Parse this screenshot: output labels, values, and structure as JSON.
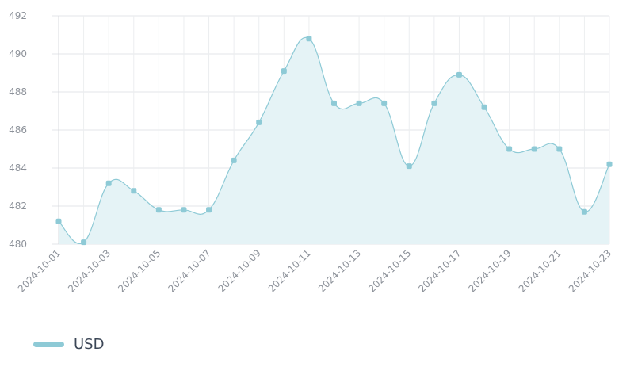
{
  "chart_data": {
    "type": "area",
    "title": "",
    "xlabel": "",
    "ylabel": "",
    "ylim": [
      480,
      492
    ],
    "yticks": [
      480,
      482,
      484,
      486,
      488,
      490,
      492
    ],
    "grid": true,
    "legend_position": "bottom-left",
    "x": [
      "2024-10-01",
      "2024-10-02",
      "2024-10-03",
      "2024-10-04",
      "2024-10-05",
      "2024-10-06",
      "2024-10-07",
      "2024-10-08",
      "2024-10-09",
      "2024-10-10",
      "2024-10-11",
      "2024-10-12",
      "2024-10-13",
      "2024-10-14",
      "2024-10-15",
      "2024-10-16",
      "2024-10-17",
      "2024-10-18",
      "2024-10-19",
      "2024-10-20",
      "2024-10-21",
      "2024-10-22",
      "2024-10-23"
    ],
    "xtick_labels": [
      "2024-10-01",
      "2024-10-03",
      "2024-10-05",
      "2024-10-07",
      "2024-10-09",
      "2024-10-11",
      "2024-10-13",
      "2024-10-15",
      "2024-10-17",
      "2024-10-19",
      "2024-10-21",
      "2024-10-23"
    ],
    "series": [
      {
        "name": "USD",
        "color": "#8ecad6",
        "fill": "#e5f3f6",
        "values": [
          481.2,
          480.1,
          483.2,
          482.8,
          481.8,
          481.8,
          481.8,
          484.4,
          486.4,
          489.1,
          490.8,
          487.4,
          487.4,
          487.4,
          484.1,
          487.4,
          488.9,
          487.2,
          485.0,
          485.0,
          485.0,
          481.7,
          484.2
        ]
      }
    ]
  },
  "legend": {
    "label": "USD"
  }
}
